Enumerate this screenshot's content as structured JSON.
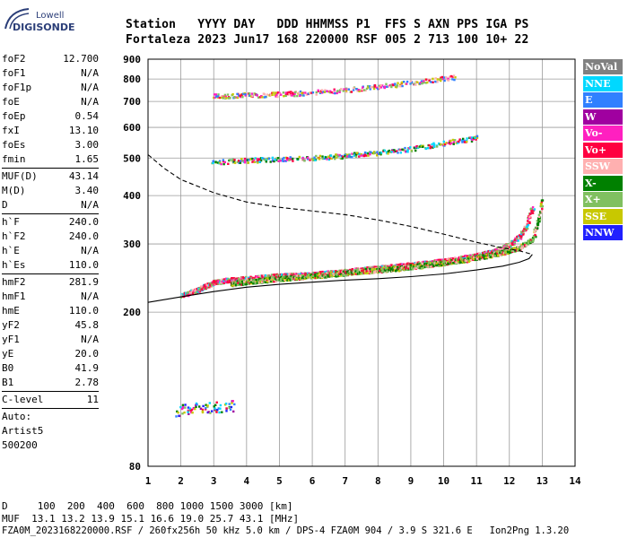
{
  "logo": {
    "line1": "Lowell",
    "line2": "DIGISONDE"
  },
  "header": {
    "line1": "Station   YYYY DAY   DDD HHMMSS P1  FFS S AXN PPS IGA PS",
    "line2": "Fortaleza 2023 Jun17 168 220000 RSF 005 2 713 100 10+ 22"
  },
  "params": [
    {
      "name": "foF2",
      "value": "12.700"
    },
    {
      "name": "foF1",
      "value": "N/A"
    },
    {
      "name": "foF1p",
      "value": "N/A"
    },
    {
      "name": "foE",
      "value": "N/A"
    },
    {
      "name": "foEp",
      "value": "0.54"
    },
    {
      "name": "fxI",
      "value": "13.10"
    },
    {
      "name": "foEs",
      "value": "3.00"
    },
    {
      "name": "fmin",
      "value": "1.65"
    },
    {
      "sep": true
    },
    {
      "name": "MUF(D)",
      "value": "43.14"
    },
    {
      "name": "M(D)",
      "value": "3.40"
    },
    {
      "name": "D",
      "value": "N/A"
    },
    {
      "sep": true
    },
    {
      "name": "h`F",
      "value": "240.0"
    },
    {
      "name": "h`F2",
      "value": "240.0"
    },
    {
      "name": "h`E",
      "value": "N/A"
    },
    {
      "name": "h`Es",
      "value": "110.0"
    },
    {
      "sep": true
    },
    {
      "name": "hmF2",
      "value": "281.9"
    },
    {
      "name": "hmF1",
      "value": "N/A"
    },
    {
      "name": "hmE",
      "value": "110.0"
    },
    {
      "name": "yF2",
      "value": "45.8"
    },
    {
      "name": "yF1",
      "value": "N/A"
    },
    {
      "name": "yE",
      "value": "20.0"
    },
    {
      "name": "B0",
      "value": "41.9"
    },
    {
      "name": "B1",
      "value": "2.78"
    },
    {
      "sep": true
    },
    {
      "name": "C-level",
      "value": "11"
    },
    {
      "sep": true
    }
  ],
  "autoscale": {
    "line1": "Auto:",
    "line2": "Artist5",
    "line3": "500200"
  },
  "legend": [
    {
      "label": "NoVal",
      "color": "#808080"
    },
    {
      "label": "NNE",
      "color": "#00d8ff"
    },
    {
      "label": "E",
      "color": "#3080ff"
    },
    {
      "label": "W",
      "color": "#a000a0"
    },
    {
      "label": "Vo-",
      "color": "#ff20c0"
    },
    {
      "label": "Vo+",
      "color": "#ff0040"
    },
    {
      "label": "SSW",
      "color": "#ffb0b0"
    },
    {
      "label": "X-",
      "color": "#008000"
    },
    {
      "label": "X+",
      "color": "#80c060"
    },
    {
      "label": "SSE",
      "color": "#c8c800"
    },
    {
      "label": "NNW",
      "color": "#2020ff"
    }
  ],
  "footer": {
    "line1": "D     100  200  400  600  800 1000 1500 3000 [km]",
    "line2": "MUF  13.1 13.2 13.9 15.1 16.6 19.0 25.7 43.1 [MHz]",
    "line3": "FZA0M_2023168220000.RSF / 260fx256h 50 kHz 5.0 km / DPS-4 FZA0M 904 / 3.9 S 321.6 E   Ion2Png 1.3.20"
  },
  "chart_data": {
    "type": "scatter",
    "x_range": [
      1,
      14
    ],
    "y_range": [
      80,
      900
    ],
    "x_ticks": [
      1,
      2,
      3,
      4,
      5,
      6,
      7,
      8,
      9,
      10,
      11,
      12,
      13,
      14
    ],
    "y_ticks": [
      80,
      200,
      300,
      400,
      500,
      600,
      700,
      800,
      900
    ],
    "grid": true,
    "y_scale": "log",
    "echo_traces": [
      {
        "name": "F2 ordinary trace",
        "points": [
          [
            2.0,
            222
          ],
          [
            2.5,
            229
          ],
          [
            3.0,
            240
          ],
          [
            3.5,
            243
          ],
          [
            4.0,
            245
          ],
          [
            5.0,
            249
          ],
          [
            6.0,
            251
          ],
          [
            7.0,
            256
          ],
          [
            8.0,
            261
          ],
          [
            9.0,
            266
          ],
          [
            10.0,
            272
          ],
          [
            10.5,
            276
          ],
          [
            11.0,
            281
          ],
          [
            11.5,
            288
          ],
          [
            12.0,
            300
          ],
          [
            12.3,
            315
          ],
          [
            12.5,
            335
          ],
          [
            12.7,
            375
          ]
        ]
      },
      {
        "name": "F2 extraordinary trace",
        "points": [
          [
            3.5,
            238
          ],
          [
            4.5,
            243
          ],
          [
            5.5,
            247
          ],
          [
            6.5,
            251
          ],
          [
            7.5,
            256
          ],
          [
            8.5,
            260
          ],
          [
            9.5,
            266
          ],
          [
            10.5,
            273
          ],
          [
            11.5,
            283
          ],
          [
            12.2,
            292
          ],
          [
            12.7,
            310
          ],
          [
            12.9,
            355
          ],
          [
            13.0,
            395
          ]
        ]
      },
      {
        "name": "second-hop trace",
        "points": [
          [
            2.9,
            490
          ],
          [
            3.5,
            492
          ],
          [
            4.0,
            495
          ],
          [
            5.0,
            499
          ],
          [
            6.0,
            502
          ],
          [
            7.0,
            509
          ],
          [
            8.0,
            518
          ],
          [
            9.0,
            530
          ],
          [
            10.0,
            548
          ],
          [
            10.5,
            557
          ],
          [
            11.0,
            566
          ]
        ]
      },
      {
        "name": "third-hop trace",
        "points": [
          [
            3.0,
            725
          ],
          [
            3.5,
            728
          ],
          [
            4.5,
            731
          ],
          [
            5.5,
            737
          ],
          [
            6.0,
            742
          ],
          [
            7.0,
            752
          ],
          [
            8.0,
            768
          ],
          [
            9.0,
            785
          ],
          [
            9.5,
            795
          ],
          [
            10.3,
            812
          ]
        ]
      },
      {
        "name": "Es trace",
        "points": [
          [
            1.8,
            111
          ],
          [
            2.2,
            113
          ],
          [
            2.6,
            114
          ],
          [
            3.0,
            114
          ],
          [
            3.4,
            115
          ],
          [
            3.6,
            115
          ]
        ]
      }
    ],
    "profile_dashed": [
      [
        1.0,
        510
      ],
      [
        1.5,
        470
      ],
      [
        2.0,
        440
      ],
      [
        3.0,
        407
      ],
      [
        4.0,
        385
      ],
      [
        5.0,
        373
      ],
      [
        6.0,
        365
      ],
      [
        7.0,
        357
      ],
      [
        8.0,
        346
      ],
      [
        9.0,
        333
      ],
      [
        10.0,
        318
      ],
      [
        11.0,
        303
      ],
      [
        11.8,
        293
      ],
      [
        12.3,
        288
      ],
      [
        12.7,
        282
      ]
    ],
    "profile_solid": [
      [
        1.0,
        212
      ],
      [
        2.0,
        219
      ],
      [
        3.0,
        226
      ],
      [
        4.0,
        232
      ],
      [
        5.0,
        236
      ],
      [
        6.0,
        239
      ],
      [
        7.0,
        242
      ],
      [
        8.0,
        244
      ],
      [
        9.0,
        247
      ],
      [
        10.0,
        251
      ],
      [
        11.0,
        257
      ],
      [
        11.8,
        263
      ],
      [
        12.3,
        269
      ],
      [
        12.6,
        275
      ],
      [
        12.7,
        282
      ]
    ]
  }
}
